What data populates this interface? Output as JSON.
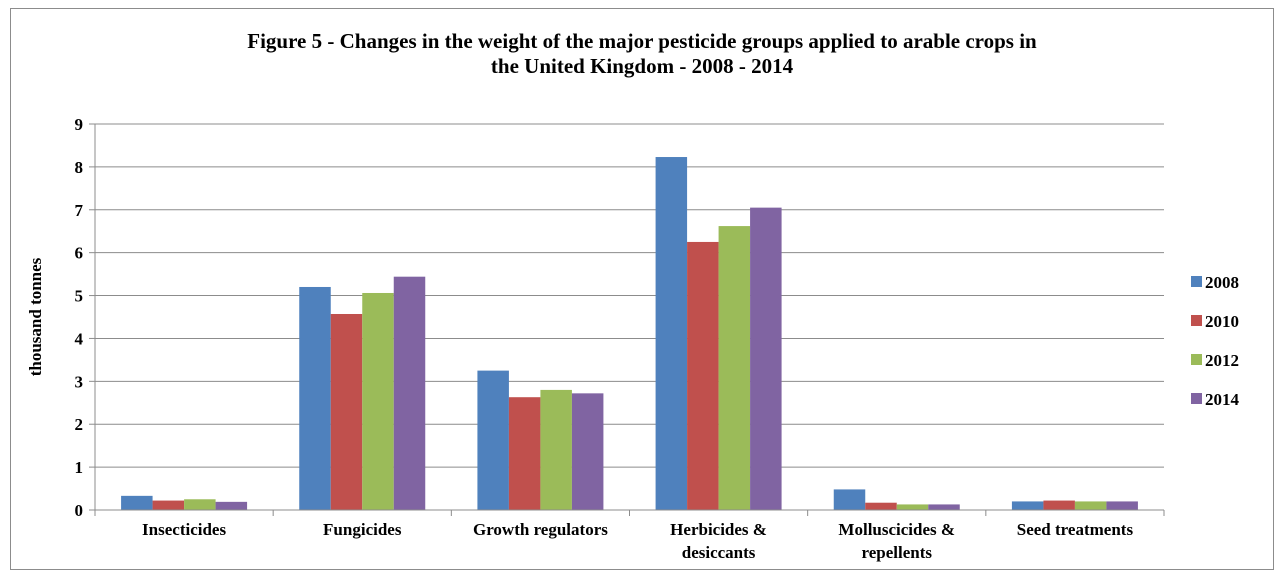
{
  "chart_data": {
    "type": "bar",
    "title_lines": [
      "Figure 5 - Changes in the weight of the major pesticide groups applied to arable crops in",
      "the United Kingdom - 2008 - 2014"
    ],
    "ylabel": "thousand tonnes",
    "xlabel": "",
    "ylim": [
      0,
      9
    ],
    "yticks": [
      0,
      1,
      2,
      3,
      4,
      5,
      6,
      7,
      8,
      9
    ],
    "grid": true,
    "legend_position": "right",
    "categories": [
      [
        "Insecticides"
      ],
      [
        "Fungicides"
      ],
      [
        "Growth regulators"
      ],
      [
        "Herbicides &",
        "desiccants"
      ],
      [
        "Molluscicides &",
        "repellents"
      ],
      [
        "Seed treatments"
      ]
    ],
    "series": [
      {
        "name": "2008",
        "color": "#4F81BD",
        "values": [
          0.33,
          5.2,
          3.25,
          8.23,
          0.48,
          0.2
        ]
      },
      {
        "name": "2010",
        "color": "#C0504D",
        "values": [
          0.22,
          4.57,
          2.63,
          6.25,
          0.17,
          0.22
        ]
      },
      {
        "name": "2012",
        "color": "#9BBB59",
        "values": [
          0.25,
          5.06,
          2.8,
          6.62,
          0.13,
          0.2
        ]
      },
      {
        "name": "2014",
        "color": "#8064A2",
        "values": [
          0.19,
          5.44,
          2.72,
          7.05,
          0.13,
          0.2
        ]
      }
    ]
  }
}
